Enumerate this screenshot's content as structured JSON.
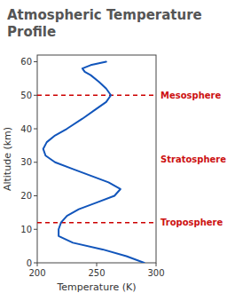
{
  "chart_data": {
    "type": "line",
    "title": "Atmospheric Temperature Profile",
    "x_label": "Temperature (K)",
    "y_label": "Altitude (km)",
    "x": [
      290,
      275,
      255,
      230,
      218,
      218,
      220,
      225,
      235,
      250,
      265,
      270,
      260,
      245,
      230,
      215,
      207,
      205,
      208,
      215,
      225,
      238,
      250,
      258,
      262,
      258,
      252,
      245,
      240,
      238,
      245,
      258
    ],
    "values": [
      0,
      2,
      4,
      6,
      8,
      10,
      12,
      14,
      16,
      18,
      20,
      22,
      24,
      26,
      28,
      30,
      32,
      34,
      36,
      38,
      40,
      43,
      46,
      48,
      50,
      52,
      54,
      56,
      57,
      58,
      59,
      60
    ],
    "color": "#1155bb",
    "xlim": [
      200,
      300
    ],
    "ylim": [
      0,
      62
    ],
    "xticks": [
      200,
      250,
      300
    ],
    "yticks": [
      0,
      10,
      20,
      30,
      40,
      50,
      60
    ],
    "grid": false,
    "reference_lines": [
      {
        "value": 12,
        "color": "#cc0000"
      },
      {
        "value": 50,
        "color": "#cc0000"
      }
    ],
    "annotations": [
      {
        "text": "Mesosphere",
        "y": 50,
        "color": "#cc1111"
      },
      {
        "text": "Stratosphere",
        "y": 31,
        "color": "#cc1111"
      },
      {
        "text": "Troposphere",
        "y": 12,
        "color": "#cc1111"
      }
    ]
  }
}
